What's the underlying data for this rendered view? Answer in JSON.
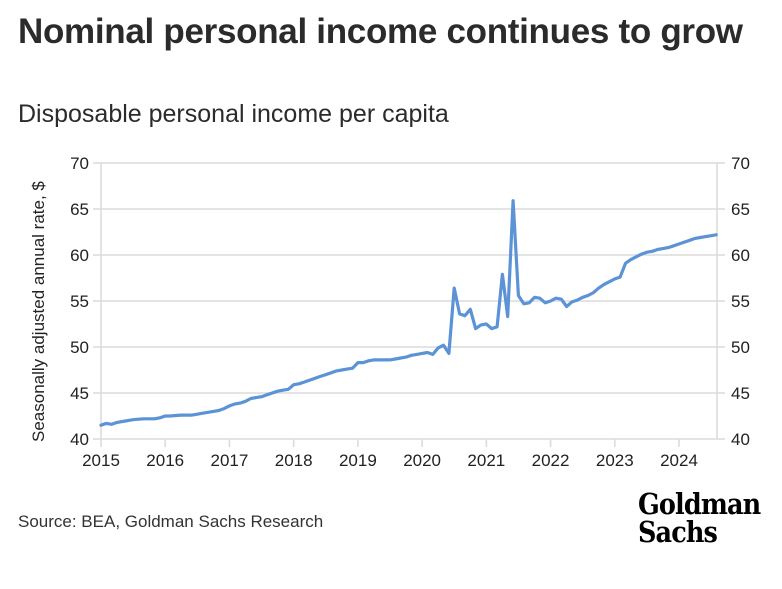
{
  "header": {
    "title": "Nominal personal income continues to grow",
    "subtitle": "Disposable personal income per capita"
  },
  "footer": {
    "source": "Source: BEA, Goldman Sachs Research",
    "logo_text": "Goldman Sachs"
  },
  "colors": {
    "line": "#5b93d6",
    "grid": "#dcdcdc",
    "text": "#2b2b2b"
  },
  "chart_data": {
    "type": "line",
    "title": "Nominal personal income continues to grow",
    "subtitle": "Disposable personal income per capita",
    "xlabel": "",
    "ylabel": "Seasonally adjusted annual rate, $",
    "xlim": [
      2015,
      2024.58
    ],
    "ylim": [
      40,
      70
    ],
    "yticks": [
      40,
      45,
      50,
      55,
      60,
      65,
      70
    ],
    "ytick_labels": [
      "40",
      "45",
      "50",
      "55",
      "60",
      "65",
      "70"
    ],
    "xticks": [
      2015,
      2016,
      2017,
      2018,
      2019,
      2020,
      2021,
      2022,
      2023,
      2024
    ],
    "xtick_labels": [
      "2015",
      "2016",
      "2017",
      "2018",
      "2019",
      "2020",
      "2021",
      "2022",
      "2023",
      "2024"
    ],
    "grid": true,
    "right_axis": true,
    "series": [
      {
        "name": "Disposable personal income per capita",
        "x": [
          2015.0,
          2015.083,
          2015.167,
          2015.25,
          2015.333,
          2015.417,
          2015.5,
          2015.583,
          2015.667,
          2015.75,
          2015.833,
          2015.917,
          2016.0,
          2016.083,
          2016.167,
          2016.25,
          2016.333,
          2016.417,
          2016.5,
          2016.583,
          2016.667,
          2016.75,
          2016.833,
          2016.917,
          2017.0,
          2017.083,
          2017.167,
          2017.25,
          2017.333,
          2017.417,
          2017.5,
          2017.583,
          2017.667,
          2017.75,
          2017.833,
          2017.917,
          2018.0,
          2018.083,
          2018.167,
          2018.25,
          2018.333,
          2018.417,
          2018.5,
          2018.583,
          2018.667,
          2018.75,
          2018.833,
          2018.917,
          2019.0,
          2019.083,
          2019.167,
          2019.25,
          2019.333,
          2019.417,
          2019.5,
          2019.583,
          2019.667,
          2019.75,
          2019.833,
          2019.917,
          2020.0,
          2020.083,
          2020.167,
          2020.25,
          2020.333,
          2020.417,
          2020.5,
          2020.583,
          2020.667,
          2020.75,
          2020.833,
          2020.917,
          2021.0,
          2021.083,
          2021.167,
          2021.25,
          2021.333,
          2021.417,
          2021.5,
          2021.583,
          2021.667,
          2021.75,
          2021.833,
          2021.917,
          2022.0,
          2022.083,
          2022.167,
          2022.25,
          2022.333,
          2022.417,
          2022.5,
          2022.583,
          2022.667,
          2022.75,
          2022.833,
          2022.917,
          2023.0,
          2023.083,
          2023.167,
          2023.25,
          2023.333,
          2023.417,
          2023.5,
          2023.583,
          2023.667,
          2023.75,
          2023.833,
          2023.917,
          2024.0,
          2024.083,
          2024.167,
          2024.25,
          2024.333,
          2024.417,
          2024.5,
          2024.58
        ],
        "values": [
          41.5,
          41.7,
          41.6,
          41.8,
          41.9,
          42.0,
          42.1,
          42.15,
          42.2,
          42.2,
          42.2,
          42.3,
          42.5,
          42.5,
          42.55,
          42.6,
          42.6,
          42.6,
          42.7,
          42.8,
          42.9,
          43.0,
          43.1,
          43.3,
          43.6,
          43.8,
          43.9,
          44.1,
          44.4,
          44.5,
          44.6,
          44.8,
          45.0,
          45.2,
          45.3,
          45.4,
          45.9,
          46.0,
          46.2,
          46.4,
          46.6,
          46.8,
          47.0,
          47.2,
          47.4,
          47.5,
          47.6,
          47.7,
          48.3,
          48.3,
          48.5,
          48.6,
          48.6,
          48.6,
          48.6,
          48.7,
          48.8,
          48.9,
          49.1,
          49.2,
          49.3,
          49.4,
          49.2,
          49.9,
          50.2,
          49.3,
          56.4,
          53.6,
          53.4,
          54.1,
          52.0,
          52.4,
          52.5,
          52.0,
          52.2,
          57.9,
          53.3,
          65.9,
          55.6,
          54.7,
          54.8,
          55.4,
          55.3,
          54.8,
          55.0,
          55.3,
          55.2,
          54.4,
          54.9,
          55.1,
          55.4,
          55.6,
          55.9,
          56.4,
          56.8,
          57.1,
          57.4,
          57.6,
          59.1,
          59.5,
          59.8,
          60.1,
          60.3,
          60.4,
          60.6,
          60.7,
          60.8,
          61.0,
          61.2,
          61.4,
          61.6,
          61.8,
          61.9,
          62.0,
          62.1,
          62.2
        ]
      }
    ]
  }
}
